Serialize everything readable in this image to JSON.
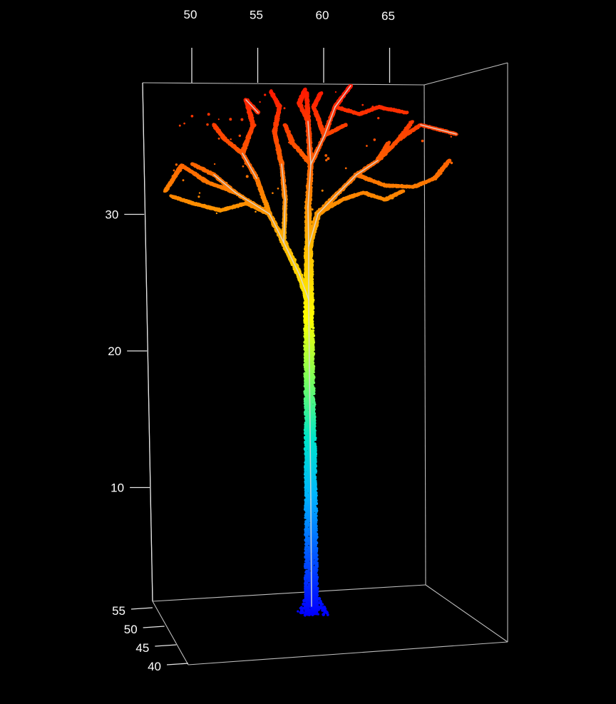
{
  "chart_data": {
    "type": "scatter",
    "subtype": "3d-point-cloud",
    "title": "",
    "xlabel": "",
    "ylabel": "",
    "zlabel": "",
    "x_axis": {
      "ticks": [
        50,
        55,
        60,
        65
      ],
      "range": [
        48,
        70
      ]
    },
    "y_axis": {
      "ticks": [
        40,
        45,
        50,
        55
      ],
      "range": [
        38,
        56
      ]
    },
    "z_axis": {
      "ticks": [
        10,
        20,
        30
      ],
      "range": [
        0,
        38
      ]
    },
    "background": "#000000",
    "axis_color": "#ffffff",
    "colormap": [
      "#0000ff",
      "#0057ff",
      "#00b4ff",
      "#00e6c8",
      "#7cff5a",
      "#ffff00",
      "#ffc800",
      "#ff8c00",
      "#ff4f00",
      "#ff1400"
    ],
    "skeleton_color": "#d9d9d9",
    "grid": false,
    "legend": "none"
  }
}
